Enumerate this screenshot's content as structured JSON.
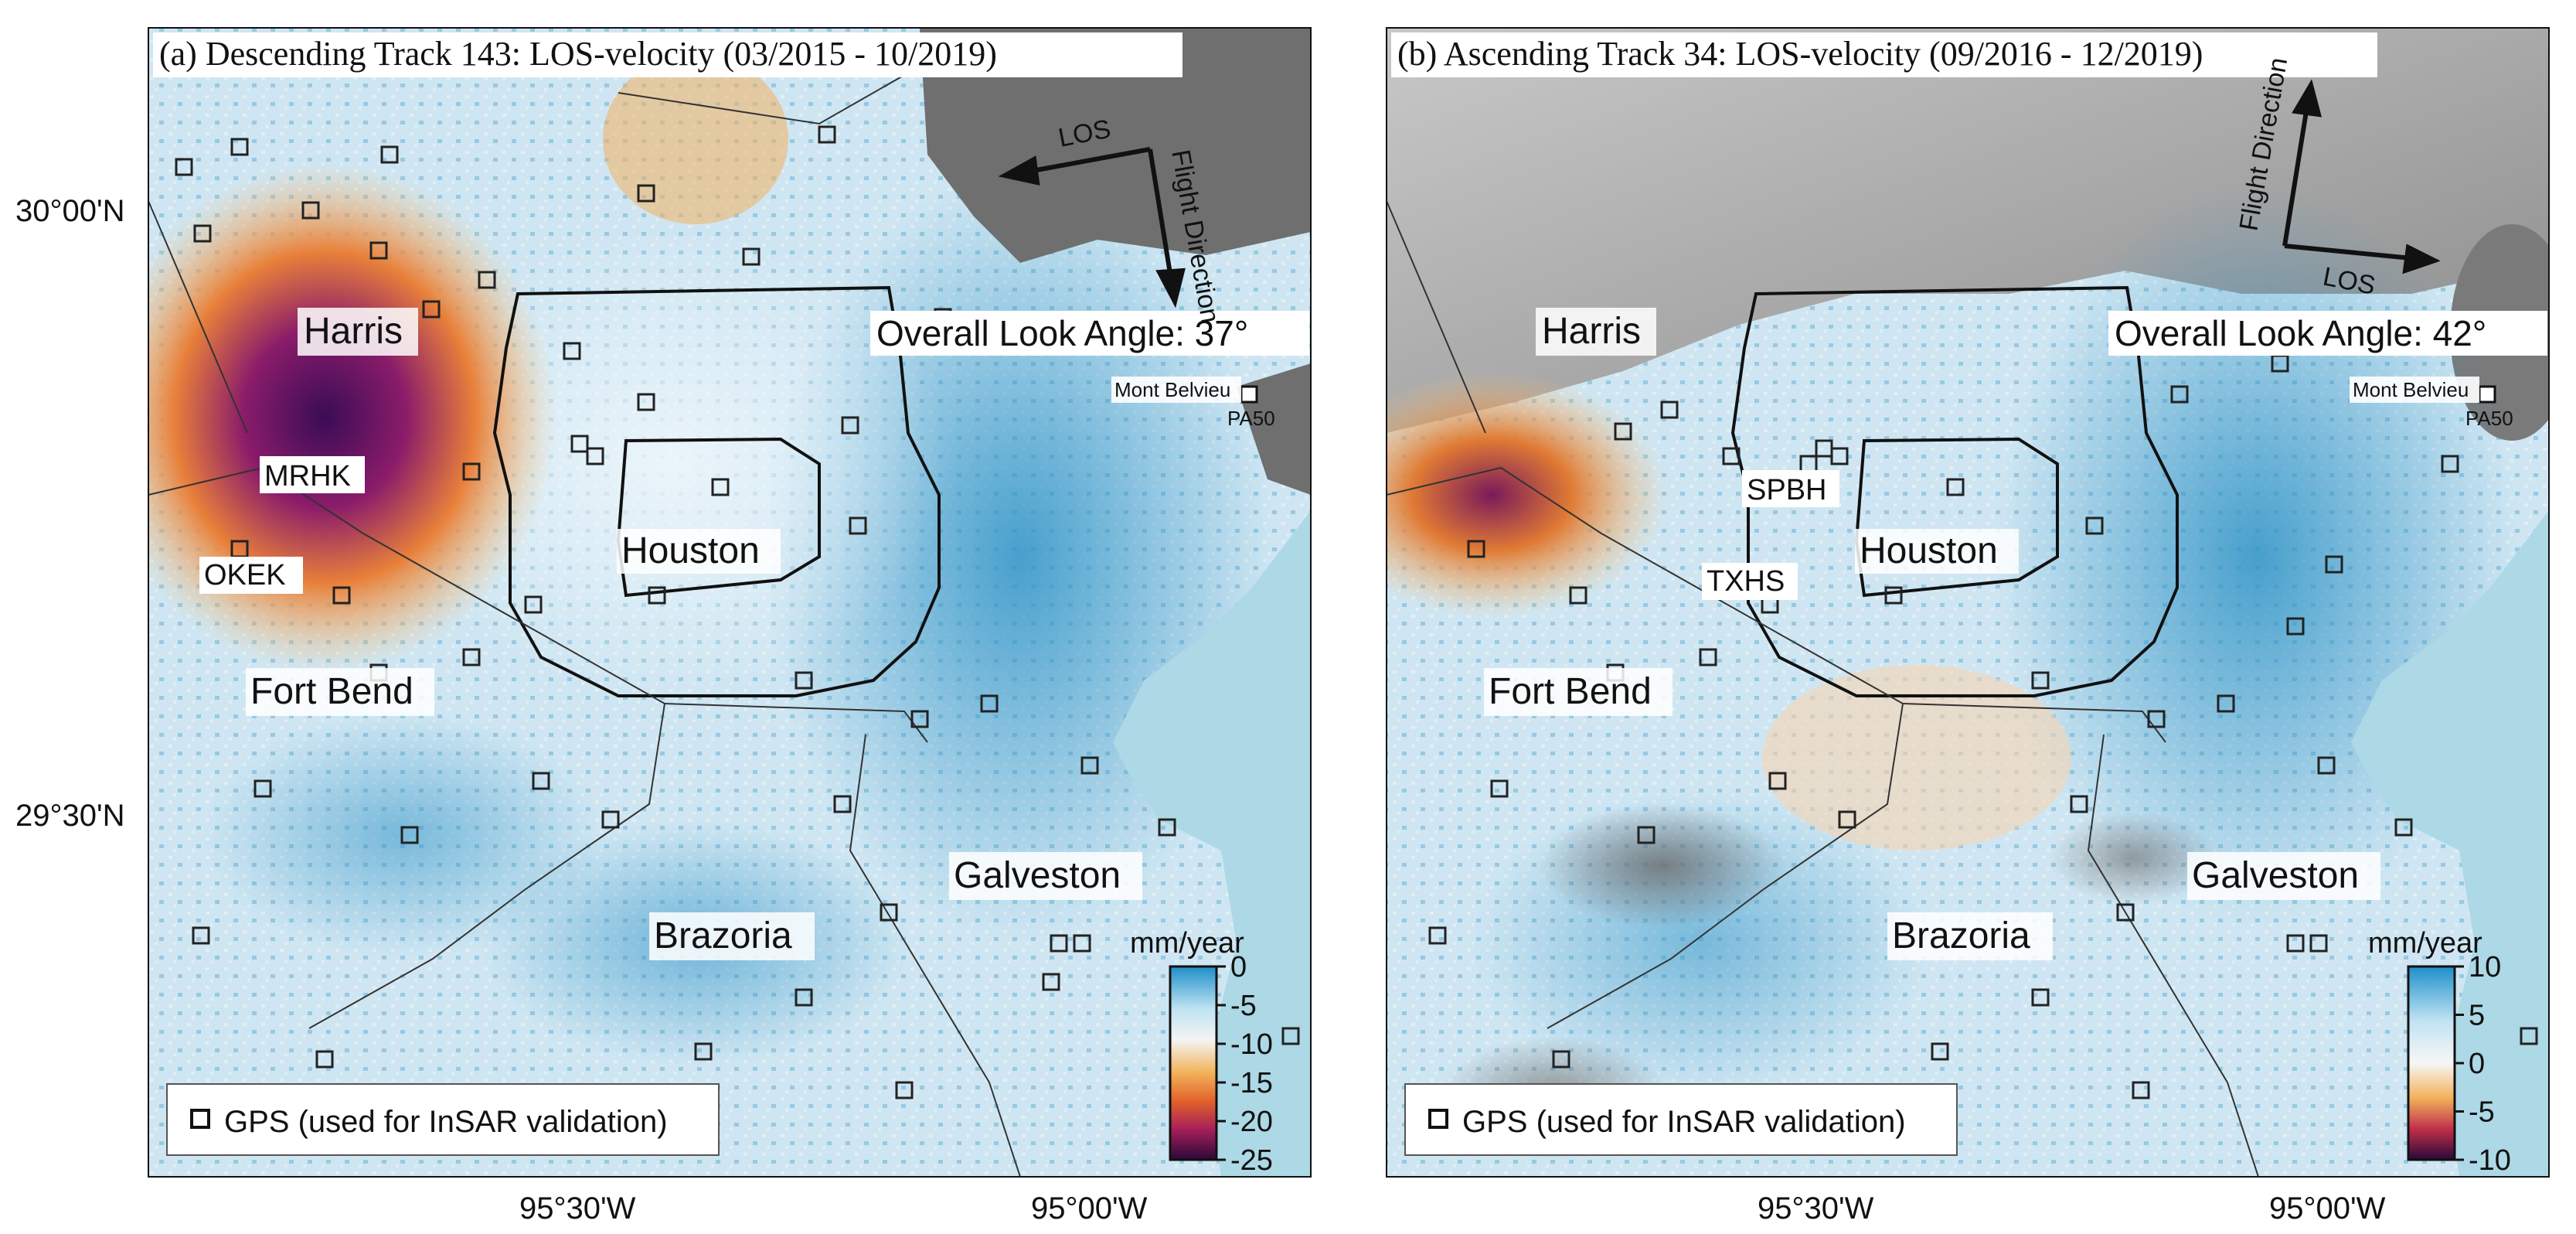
{
  "panels": [
    {
      "id": "a",
      "title": "(a) Descending Track 143: LOS-velocity (03/2015 - 10/2019)",
      "look_angle": "Overall Look Angle: 37°",
      "arrow_los": "LOS",
      "arrow_flight": "Flight Direction",
      "site_mont": "Mont Belvieu",
      "site_pa50": "PA50",
      "county_harris": "Harris",
      "county_fortbend": "Fort Bend",
      "county_brazoria": "Brazoria",
      "county_galveston": "Galveston",
      "city_houston": "Houston",
      "stations": [
        "MRHK",
        "OKEK"
      ],
      "legend": "GPS (used for InSAR validation)",
      "colorbar": {
        "unit": "mm/year",
        "ticks": [
          "0",
          "-5",
          "-10",
          "-15",
          "-20",
          "-25"
        ],
        "range": [
          -25,
          0
        ]
      }
    },
    {
      "id": "b",
      "title": "(b) Ascending Track 34: LOS-velocity (09/2016 - 12/2019)",
      "look_angle": "Overall Look Angle: 42°",
      "arrow_los": "LOS",
      "arrow_flight": "Flight Direction",
      "site_mont": "Mont Belvieu",
      "site_pa50": "PA50",
      "county_harris": "Harris",
      "county_fortbend": "Fort Bend",
      "county_brazoria": "Brazoria",
      "county_galveston": "Galveston",
      "city_houston": "Houston",
      "stations": [
        "SPBH",
        "TXHS"
      ],
      "legend": "GPS (used for InSAR validation)",
      "colorbar": {
        "unit": "mm/year",
        "ticks": [
          "10",
          "5",
          "0",
          "-5",
          "-10"
        ],
        "range": [
          -10,
          10
        ]
      }
    }
  ],
  "axes": {
    "lat_labels": [
      "30°00'N",
      "29°30'N"
    ],
    "lon_labels": [
      "95°30'W",
      "95°00'W"
    ]
  },
  "colors": {
    "water": "#add8e6",
    "uplift_blue": "#3a9bc9",
    "light_blue": "#cfe6f2",
    "orange": "#f0a04a",
    "purple": "#4a1060",
    "terrain": "#7a7a7a"
  }
}
